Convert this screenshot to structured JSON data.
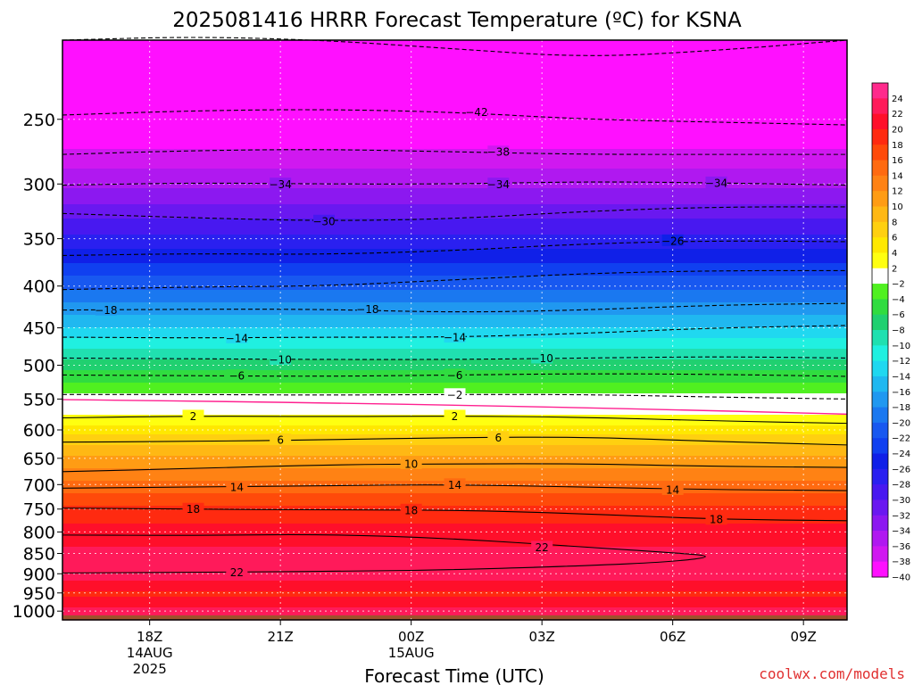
{
  "page": {
    "title": "2025081416 HRRR Forecast Temperature (ºC) for KSNA",
    "credit": "coolwx.com/models"
  },
  "chart_data": {
    "type": "heatmap",
    "title": "2025081416 HRRR Forecast Temperature (ºC) for KSNA",
    "xlabel": "Forecast Time (UTC)",
    "ylabel": "",
    "x_ticks": [
      {
        "hours": 2,
        "label": "18Z",
        "sub1": "14AUG",
        "sub2": "2025"
      },
      {
        "hours": 5,
        "label": "21Z",
        "sub1": "",
        "sub2": ""
      },
      {
        "hours": 8,
        "label": "00Z",
        "sub1": "15AUG",
        "sub2": ""
      },
      {
        "hours": 11,
        "label": "03Z",
        "sub1": "",
        "sub2": ""
      },
      {
        "hours": 14,
        "label": "06Z",
        "sub1": "",
        "sub2": ""
      },
      {
        "hours": 17,
        "label": "09Z",
        "sub1": "",
        "sub2": ""
      }
    ],
    "x_range": [
      "2025-08-14 16Z",
      "2025-08-15 10Z"
    ],
    "x_hours_range": [
      0,
      18
    ],
    "y_scale": "log",
    "y_inverted": true,
    "y_range_hpa": [
      1025,
      200
    ],
    "y_ticks": [
      250,
      300,
      350,
      400,
      450,
      500,
      550,
      600,
      650,
      700,
      750,
      800,
      850,
      900,
      950,
      1000
    ],
    "grid": true,
    "colorbar": {
      "position": "right",
      "labels": [
        "24",
        "22",
        "20",
        "18",
        "16",
        "14",
        "12",
        "10",
        "8",
        "6",
        "4",
        "2",
        "-2",
        "-4",
        "-6",
        "-8",
        "-10",
        "-12",
        "-14",
        "-16",
        "-18",
        "-20",
        "-22",
        "-24",
        "-26",
        "-28",
        "-30",
        "-32",
        "-34",
        "-36",
        "-38",
        "-40"
      ],
      "colors": [
        "#ff2a8c",
        "#ff1a5a",
        "#ff0f2a",
        "#ff2a10",
        "#ff4a0a",
        "#ff6a10",
        "#ff8214",
        "#ff9c14",
        "#ffb814",
        "#ffd010",
        "#ffe800",
        "#ffff10",
        "#ffffff",
        "#50f020",
        "#30dc40",
        "#20d070",
        "#20e0b0",
        "#20f0e0",
        "#20d8f0",
        "#20b8f0",
        "#2098f0",
        "#1a78f0",
        "#1858f0",
        "#1040f0",
        "#1020e8",
        "#2a20f0",
        "#4818f0",
        "#6a18f0",
        "#8c18f0",
        "#b018f0",
        "#d018f0",
        "#ff10ff"
      ]
    },
    "profile": [
      {
        "p": 1000,
        "t": 22.5
      },
      {
        "p": 950,
        "t": 19.5
      },
      {
        "p": 900,
        "t": 23.5
      },
      {
        "p": 850,
        "t": 22.5
      },
      {
        "p": 800,
        "t": 21.0
      },
      {
        "p": 750,
        "t": 18.5
      },
      {
        "p": 700,
        "t": 14.5
      },
      {
        "p": 650,
        "t": 10.5
      },
      {
        "p": 600,
        "t": 5.0
      },
      {
        "p": 550,
        "t": -1.0
      },
      {
        "p": 500,
        "t": -7.0
      },
      {
        "p": 450,
        "t": -14.0
      },
      {
        "p": 400,
        "t": -20.5
      },
      {
        "p": 350,
        "t": -27.5
      },
      {
        "p": 300,
        "t": -34.5
      },
      {
        "p": 250,
        "t": -41.0
      },
      {
        "p": 200,
        "t": -48.0
      }
    ],
    "surface_pressure": 1012,
    "contours": [
      {
        "t": -42,
        "label": "-42",
        "dashed": true,
        "points": [
          [
            0,
            200
          ],
          [
            3,
            198
          ],
          [
            6,
            200
          ],
          [
            9,
            205
          ],
          [
            12,
            210
          ],
          [
            15,
            206
          ],
          [
            18,
            200
          ]
        ]
      },
      {
        "t": -42,
        "label": "-42",
        "dashed": true,
        "points": [
          [
            0,
            247
          ],
          [
            3,
            244
          ],
          [
            6,
            243
          ],
          [
            9,
            245
          ],
          [
            12,
            250
          ],
          [
            15,
            252
          ],
          [
            18,
            254
          ]
        ],
        "labels_at": [
          9.5
        ]
      },
      {
        "t": -38,
        "label": "-38",
        "dashed": true,
        "points": [
          [
            0,
            276
          ],
          [
            3,
            273
          ],
          [
            6,
            272
          ],
          [
            9,
            274
          ],
          [
            12,
            276
          ],
          [
            15,
            276
          ],
          [
            18,
            276
          ]
        ],
        "labels_at": [
          10
        ]
      },
      {
        "t": -34,
        "label": "-34",
        "dashed": true,
        "points": [
          [
            0,
            301
          ],
          [
            3,
            299
          ],
          [
            6,
            300
          ],
          [
            9,
            300
          ],
          [
            12,
            298
          ],
          [
            15,
            299
          ],
          [
            18,
            301
          ]
        ],
        "labels_at": [
          5,
          10,
          15
        ]
      },
      {
        "t": -30,
        "label": "-30",
        "dashed": true,
        "points": [
          [
            0,
            326
          ],
          [
            3,
            330
          ],
          [
            6,
            333
          ],
          [
            9,
            331
          ],
          [
            12,
            324
          ],
          [
            15,
            320
          ],
          [
            18,
            320
          ]
        ],
        "labels_at": [
          6
        ]
      },
      {
        "t": -26,
        "label": "-26",
        "dashed": true,
        "points": [
          [
            0,
            367
          ],
          [
            3,
            365
          ],
          [
            6,
            366
          ],
          [
            9,
            362
          ],
          [
            12,
            355
          ],
          [
            15,
            352
          ],
          [
            18,
            353
          ]
        ],
        "labels_at": [
          14
        ]
      },
      {
        "t": -22,
        "label": "-22",
        "dashed": true,
        "points": [
          [
            0,
            404
          ],
          [
            3,
            401
          ],
          [
            6,
            400
          ],
          [
            9,
            393
          ],
          [
            12,
            386
          ],
          [
            15,
            383
          ],
          [
            18,
            383
          ]
        ]
      },
      {
        "t": -18,
        "label": "-18",
        "dashed": true,
        "points": [
          [
            0,
            428
          ],
          [
            3,
            427
          ],
          [
            6,
            427
          ],
          [
            9,
            431
          ],
          [
            12,
            428
          ],
          [
            15,
            422
          ],
          [
            18,
            420
          ]
        ],
        "labels_at": [
          1,
          7
        ]
      },
      {
        "t": -14,
        "label": "-14",
        "dashed": true,
        "points": [
          [
            0,
            462
          ],
          [
            3,
            463
          ],
          [
            6,
            462
          ],
          [
            9,
            462
          ],
          [
            12,
            457
          ],
          [
            15,
            450
          ],
          [
            18,
            447
          ]
        ],
        "labels_at": [
          4,
          9
        ]
      },
      {
        "t": -10,
        "label": "-10",
        "dashed": true,
        "points": [
          [
            0,
            490
          ],
          [
            3,
            491
          ],
          [
            6,
            492
          ],
          [
            9,
            492
          ],
          [
            12,
            490
          ],
          [
            15,
            488
          ],
          [
            18,
            490
          ]
        ],
        "labels_at": [
          5,
          11
        ]
      },
      {
        "t": -6,
        "label": "-6",
        "dashed": true,
        "points": [
          [
            0,
            514
          ],
          [
            3,
            515
          ],
          [
            6,
            516
          ],
          [
            9,
            514
          ],
          [
            12,
            512
          ],
          [
            15,
            513
          ],
          [
            18,
            516
          ]
        ],
        "labels_at": [
          4,
          9
        ]
      },
      {
        "t": -2,
        "label": "-2",
        "dashed": true,
        "points": [
          [
            0,
            543
          ],
          [
            3,
            543
          ],
          [
            6,
            544
          ],
          [
            9,
            543
          ],
          [
            12,
            543
          ],
          [
            15,
            547
          ],
          [
            18,
            550
          ]
        ],
        "labels_at": [
          9
        ]
      },
      {
        "t": 2,
        "label": "2",
        "dashed": false,
        "points": [
          [
            0,
            580
          ],
          [
            3,
            577
          ],
          [
            6,
            578
          ],
          [
            9,
            577
          ],
          [
            12,
            579
          ],
          [
            15,
            585
          ],
          [
            18,
            589
          ]
        ],
        "labels_at": [
          3,
          9
        ]
      },
      {
        "t": 6,
        "label": "6",
        "dashed": false,
        "points": [
          [
            0,
            621
          ],
          [
            3,
            620
          ],
          [
            6,
            617
          ],
          [
            9,
            613
          ],
          [
            12,
            612
          ],
          [
            15,
            620
          ],
          [
            18,
            626
          ]
        ],
        "labels_at": [
          5,
          10
        ]
      },
      {
        "t": 10,
        "label": "10",
        "dashed": false,
        "points": [
          [
            0,
            675
          ],
          [
            3,
            669
          ],
          [
            6,
            662
          ],
          [
            9,
            660
          ],
          [
            12,
            660
          ],
          [
            15,
            665
          ],
          [
            18,
            667
          ]
        ],
        "labels_at": [
          8
        ]
      },
      {
        "t": 14,
        "label": "14",
        "dashed": false,
        "points": [
          [
            0,
            707
          ],
          [
            3,
            705
          ],
          [
            6,
            702
          ],
          [
            9,
            700
          ],
          [
            12,
            705
          ],
          [
            15,
            710
          ],
          [
            18,
            712
          ]
        ],
        "labels_at": [
          4,
          9,
          14
        ]
      },
      {
        "t": 18,
        "label": "18",
        "dashed": false,
        "points": [
          [
            0,
            748
          ],
          [
            3,
            750
          ],
          [
            6,
            752
          ],
          [
            9,
            752
          ],
          [
            12,
            760
          ],
          [
            15,
            772
          ],
          [
            18,
            775
          ]
        ],
        "labels_at": [
          3,
          8,
          15
        ]
      },
      {
        "t": 22,
        "label": "22",
        "dashed": false,
        "points": [
          [
            0,
            807
          ],
          [
            3,
            808
          ],
          [
            6,
            805
          ],
          [
            9,
            815
          ],
          [
            12,
            835
          ],
          [
            14,
            848
          ],
          [
            15,
            857
          ],
          [
            14,
            870
          ],
          [
            12,
            880
          ],
          [
            9,
            890
          ],
          [
            7,
            893
          ],
          [
            4,
            896
          ],
          [
            0,
            898
          ]
        ],
        "labels_at": [
          4,
          11
        ]
      }
    ]
  }
}
